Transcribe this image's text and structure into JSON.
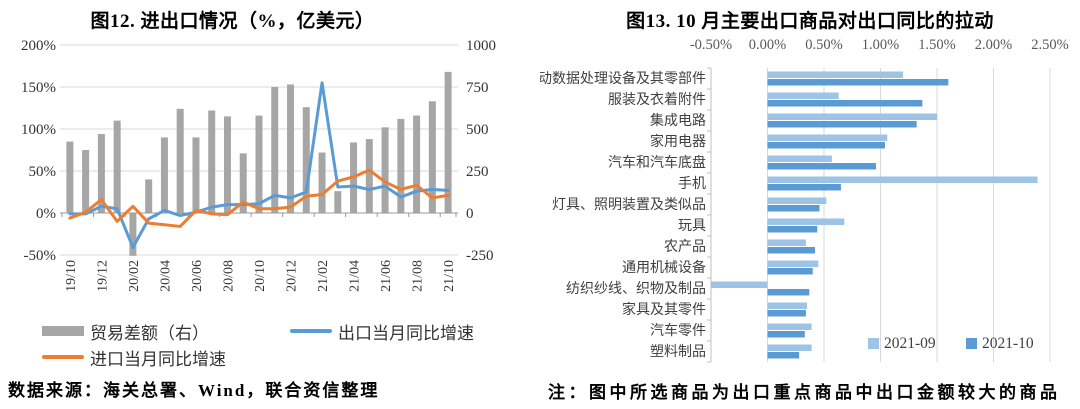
{
  "chart_data": [
    {
      "id": "import-export",
      "type": "bar+line",
      "title": "图12. 进出口情况（%，亿美元）",
      "x": [
        "19/10",
        "19/11",
        "19/12",
        "20/01",
        "20/02",
        "20/03",
        "20/04",
        "20/05",
        "20/06",
        "20/07",
        "20/08",
        "20/09",
        "20/10",
        "20/11",
        "20/12",
        "21/01",
        "21/02",
        "21/03",
        "21/04",
        "21/05",
        "21/06",
        "21/07",
        "21/08",
        "21/09",
        "21/10"
      ],
      "x_tick_labels": [
        "19/10",
        "19/12",
        "20/02",
        "20/04",
        "20/06",
        "20/08",
        "20/10",
        "20/12",
        "21/02",
        "21/04",
        "21/06",
        "21/08",
        "21/10"
      ],
      "series": [
        {
          "name": "贸易差额（右）",
          "type": "bar",
          "axis": "right",
          "color": "#A6A6A6",
          "values": [
            425,
            375,
            470,
            550,
            -255,
            200,
            450,
            620,
            450,
            610,
            575,
            355,
            580,
            750,
            765,
            630,
            360,
            130,
            420,
            440,
            510,
            560,
            580,
            665,
            840
          ]
        },
        {
          "name": "出口当月同比增速",
          "type": "line",
          "axis": "left",
          "color": "#5B9BD5",
          "values": [
            -1,
            -1,
            8,
            5,
            -41,
            -7,
            3,
            -3,
            1,
            7,
            10,
            10,
            11,
            21,
            18,
            25,
            155,
            31,
            32,
            28,
            32,
            19,
            26,
            28,
            27
          ]
        },
        {
          "name": "进口当月同比增速",
          "type": "line",
          "axis": "left",
          "color": "#ED7D31",
          "values": [
            -6,
            1,
            16,
            -10,
            8,
            -12,
            -14,
            -16,
            3,
            -1,
            -2,
            13,
            5,
            5,
            7,
            20,
            22,
            38,
            43,
            51,
            37,
            28,
            33,
            18,
            21
          ]
        }
      ],
      "left_axis": {
        "ticks": [
          "200%",
          "150%",
          "100%",
          "50%",
          "0%",
          "-50%"
        ],
        "tick_values": [
          200,
          150,
          100,
          50,
          0,
          -50
        ],
        "min": -50,
        "max": 200
      },
      "right_axis": {
        "ticks": [
          "1000",
          "750",
          "500",
          "250",
          "0",
          "-250"
        ],
        "tick_values": [
          1000,
          750,
          500,
          250,
          0,
          -250
        ],
        "min": -250,
        "max": 1000
      },
      "grid": true,
      "legend_position": "bottom"
    },
    {
      "id": "export-pull",
      "type": "bar",
      "orientation": "horizontal",
      "title": "图13. 10 月主要出口商品对出口同比的拉动",
      "categories": [
        "自动数据处理设备及其零部件",
        "服装及衣着附件",
        "集成电路",
        "家用电器",
        "汽车和汽车底盘",
        "手机",
        "灯具、照明装置及类似品",
        "玩具",
        "农产品",
        "通用机械设备",
        "纺织纱线、织物及制品",
        "家具及其零件",
        "汽车零件",
        "塑料制品"
      ],
      "series": [
        {
          "name": "2021-09",
          "color": "#9DC3E6",
          "values": [
            1.2,
            0.63,
            1.5,
            1.06,
            0.57,
            2.39,
            0.52,
            0.68,
            0.34,
            0.45,
            -0.5,
            0.35,
            0.39,
            0.39
          ]
        },
        {
          "name": "2021-10",
          "color": "#5B9BD5",
          "values": [
            1.6,
            1.37,
            1.32,
            1.04,
            0.96,
            0.65,
            0.46,
            0.44,
            0.42,
            0.4,
            0.37,
            0.34,
            0.33,
            0.28
          ]
        }
      ],
      "x_axis": {
        "ticks": [
          "-0.50%",
          "0.00%",
          "0.50%",
          "1.00%",
          "1.50%",
          "2.00%",
          "2.50%"
        ],
        "tick_values": [
          -0.5,
          0,
          0.5,
          1,
          1.5,
          2,
          2.5
        ],
        "min": -0.5,
        "max": 2.5,
        "position": "top"
      },
      "grid": true,
      "legend_position": "inside-bottom-right"
    }
  ],
  "footer": {
    "source": "数据来源：海关总署、Wind，联合资信整理",
    "note": "注：图中所选商品为出口重点商品中出口金额较大的商品"
  },
  "colors": {
    "gridline": "#D9D9D9",
    "axis": "#BFBFBF",
    "axis_text": "#404040",
    "tick_text": "#595959"
  }
}
